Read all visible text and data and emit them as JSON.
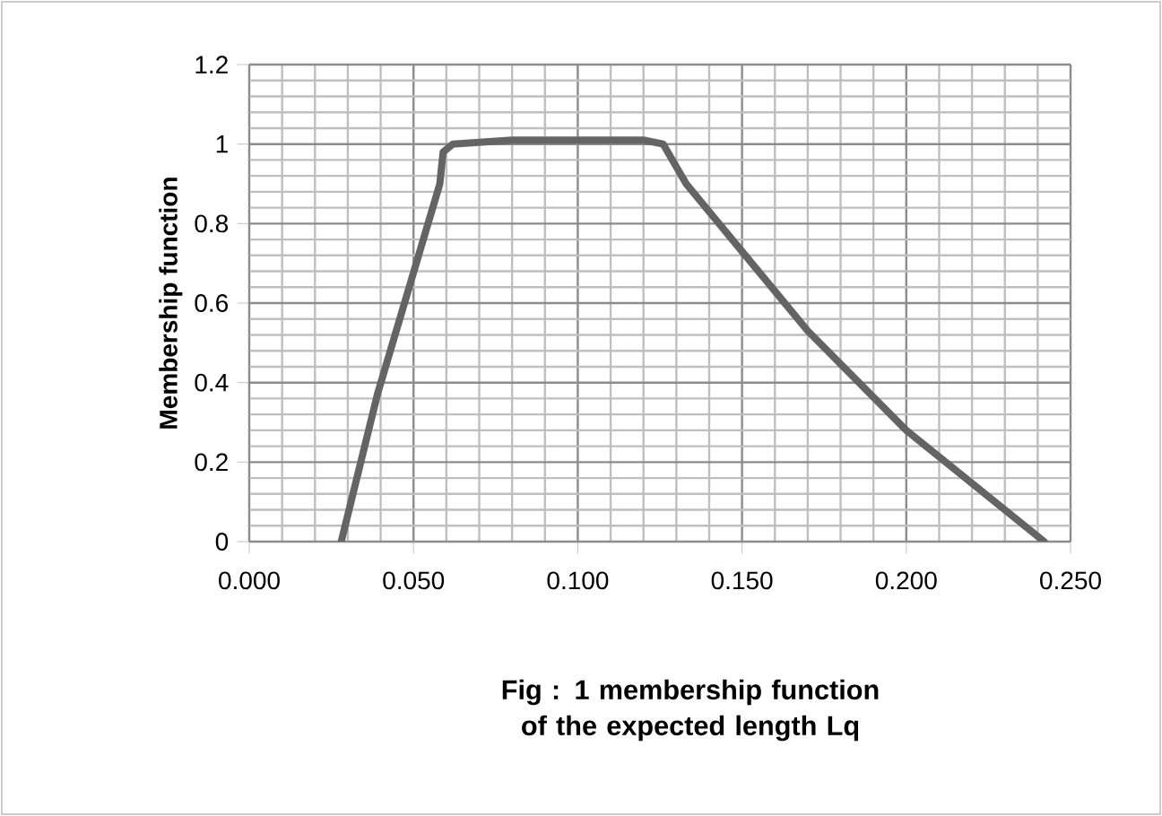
{
  "chart_data": {
    "type": "line",
    "ylabel": "Membership function",
    "annotations": [
      "Fig : 1 membership function of the  expected length Lq"
    ],
    "x": [
      0.028,
      0.039,
      0.058,
      0.059,
      0.062,
      0.08,
      0.1,
      0.12,
      0.126,
      0.133,
      0.15,
      0.17,
      0.2,
      0.242
    ],
    "series": [
      {
        "color": "#646464",
        "values": [
          0,
          0.37,
          0.9,
          0.98,
          1.0,
          1.01,
          1.01,
          1.01,
          1.0,
          0.9,
          0.73,
          0.53,
          0.28,
          0
        ]
      }
    ],
    "xlim": [
      0,
      0.25
    ],
    "ylim": [
      0,
      1.2
    ],
    "xticks": [
      {
        "value": 0,
        "label": "0.000"
      },
      {
        "value": 0.05,
        "label": "0.050"
      },
      {
        "value": 0.1,
        "label": "0.100"
      },
      {
        "value": 0.15,
        "label": "0.150"
      },
      {
        "value": 0.2,
        "label": "0.200"
      },
      {
        "value": 0.25,
        "label": "0.250"
      }
    ],
    "yticks": [
      0,
      0.2,
      0.4,
      0.6,
      0.8,
      1,
      1.2
    ],
    "grid": true,
    "line_style": "solid"
  }
}
